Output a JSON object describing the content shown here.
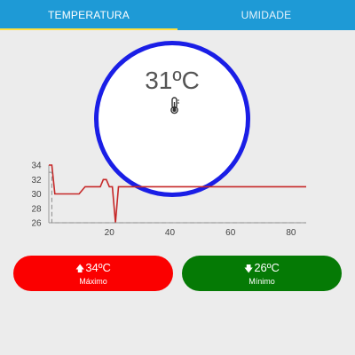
{
  "tabs": [
    {
      "label": "TEMPERATURA",
      "active": true
    },
    {
      "label": "UMIDADE",
      "active": false
    }
  ],
  "current": {
    "temperature": "31ºC",
    "icon": "thermometer-icon",
    "ring_color": "#1a1ee6"
  },
  "chart_data": {
    "type": "line",
    "title": "",
    "xlabel": "",
    "ylabel": "",
    "xlim": [
      0,
      85
    ],
    "ylim": [
      26,
      34
    ],
    "x_ticks": [
      20,
      40,
      60,
      80
    ],
    "y_ticks": [
      26,
      28,
      30,
      32,
      34
    ],
    "series": [
      {
        "color": "#c62828",
        "x": [
          0,
          1,
          2,
          5,
          10,
          12,
          14,
          17,
          18,
          19,
          20,
          21,
          22,
          23,
          25,
          30,
          40,
          50,
          60,
          70,
          80,
          85
        ],
        "y": [
          34,
          34,
          30,
          30,
          30,
          31,
          31,
          31,
          32,
          32,
          31,
          31,
          26,
          31,
          31,
          31,
          31,
          31,
          31,
          31,
          31,
          31
        ]
      },
      {
        "color": "#8a8a8a",
        "x": [
          0,
          1,
          1,
          85
        ],
        "y": [
          33,
          33,
          26,
          26
        ]
      }
    ]
  },
  "max": {
    "arrow": "🡅",
    "value": "34ºC",
    "label": "Máximo",
    "color": "#fb0000"
  },
  "min": {
    "arrow": "🡇",
    "value": "26ºC",
    "label": "Mínimo",
    "color": "#057a05"
  }
}
